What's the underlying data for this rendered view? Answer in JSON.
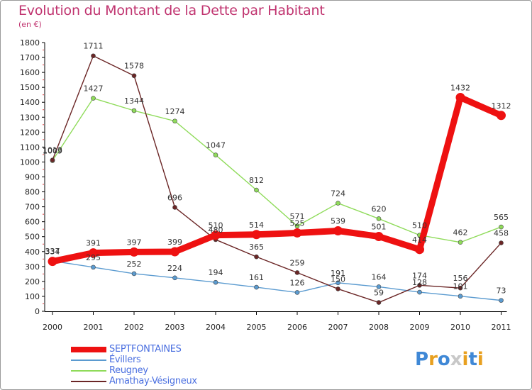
{
  "title": "Evolution du Montant de la Dette par Habitant",
  "subtitle": "(en €)",
  "logo": {
    "text": "Proxiti",
    "letters": [
      {
        "char": "P",
        "color": "#3f88d6"
      },
      {
        "char": "r",
        "color": "#e8a020"
      },
      {
        "char": "o",
        "color": "#3f88d6"
      },
      {
        "char": "x",
        "color": "#c8c8c8"
      },
      {
        "char": "i",
        "color": "#e8a020"
      },
      {
        "char": "t",
        "color": "#3f88d6"
      },
      {
        "char": "i",
        "color": "#e8a020"
      }
    ]
  },
  "chart_data": {
    "type": "line",
    "title": "Evolution du Montant de la Dette par Habitant",
    "subtitle": "(en €)",
    "x": [
      "2000",
      "2001",
      "2002",
      "2003",
      "2004",
      "2005",
      "2006",
      "2007",
      "2008",
      "2009",
      "2010",
      "2011"
    ],
    "yticks": [
      0,
      100,
      200,
      300,
      400,
      500,
      600,
      700,
      800,
      900,
      1000,
      1100,
      1200,
      1300,
      1400,
      1500,
      1600,
      1700,
      1800
    ],
    "ylim": [
      0,
      1800
    ],
    "grid": false,
    "legend_position": "bottom-left",
    "series": [
      {
        "name": "SEPTFONTAINES",
        "color": "#ee1111",
        "emphasis": true,
        "values": [
          334,
          391,
          397,
          399,
          510,
          514,
          525,
          539,
          501,
          414,
          1432,
          1312
        ]
      },
      {
        "name": "Évillers",
        "color": "#5b9bd0",
        "emphasis": false,
        "values": [
          337,
          295,
          252,
          224,
          194,
          161,
          126,
          191,
          164,
          128,
          101,
          73
        ]
      },
      {
        "name": "Reugney",
        "color": "#8fdb5a",
        "emphasis": false,
        "values": [
          1009,
          1427,
          1344,
          1274,
          1047,
          812,
          571,
          724,
          620,
          510,
          462,
          565
        ]
      },
      {
        "name": "Amathay-Vésigneux",
        "color": "#6b2626",
        "emphasis": false,
        "values": [
          1013,
          1711,
          1578,
          696,
          480,
          365,
          259,
          150,
          59,
          174,
          156,
          458
        ]
      }
    ],
    "data_labels": [
      [
        "334",
        "391",
        "397",
        "399",
        "510",
        "514",
        "525",
        "539",
        "501",
        "414",
        "1432",
        "1312"
      ],
      [
        "337",
        "295",
        "252",
        "224",
        "194",
        "161",
        "126",
        "191",
        "164",
        "128",
        "101",
        "73"
      ],
      [
        "1009",
        "1427",
        "1344",
        "1274",
        "1047",
        "812",
        "571",
        "724",
        "620",
        "510",
        "462",
        "565"
      ],
      [
        "1013",
        "1711",
        "1578",
        "696",
        "480",
        "365",
        "259",
        "150",
        "59",
        "174",
        "156",
        "458"
      ]
    ]
  }
}
